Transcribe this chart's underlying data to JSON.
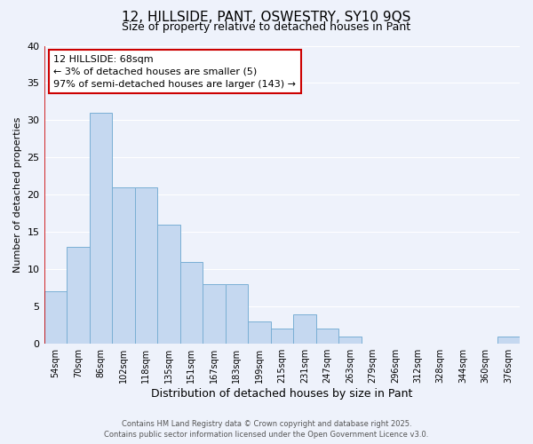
{
  "title": "12, HILLSIDE, PANT, OSWESTRY, SY10 9QS",
  "subtitle": "Size of property relative to detached houses in Pant",
  "xlabel": "Distribution of detached houses by size in Pant",
  "ylabel": "Number of detached properties",
  "bar_color": "#c5d8f0",
  "bar_edge_color": "#7aafd4",
  "background_color": "#eef2fb",
  "grid_color": "#ffffff",
  "categories": [
    "54sqm",
    "70sqm",
    "86sqm",
    "102sqm",
    "118sqm",
    "135sqm",
    "151sqm",
    "167sqm",
    "183sqm",
    "199sqm",
    "215sqm",
    "231sqm",
    "247sqm",
    "263sqm",
    "279sqm",
    "296sqm",
    "312sqm",
    "328sqm",
    "344sqm",
    "360sqm",
    "376sqm"
  ],
  "values": [
    7,
    13,
    31,
    21,
    21,
    16,
    11,
    8,
    8,
    3,
    2,
    4,
    2,
    1,
    0,
    0,
    0,
    0,
    0,
    0,
    1
  ],
  "ylim": [
    0,
    40
  ],
  "yticks": [
    0,
    5,
    10,
    15,
    20,
    25,
    30,
    35,
    40
  ],
  "marker_color": "#cc0000",
  "annotation_title": "12 HILLSIDE: 68sqm",
  "annotation_line1": "← 3% of detached houses are smaller (5)",
  "annotation_line2": "97% of semi-detached houses are larger (143) →",
  "annotation_box_color": "#ffffff",
  "annotation_border_color": "#cc0000",
  "footer_line1": "Contains HM Land Registry data © Crown copyright and database right 2025.",
  "footer_line2": "Contains public sector information licensed under the Open Government Licence v3.0."
}
